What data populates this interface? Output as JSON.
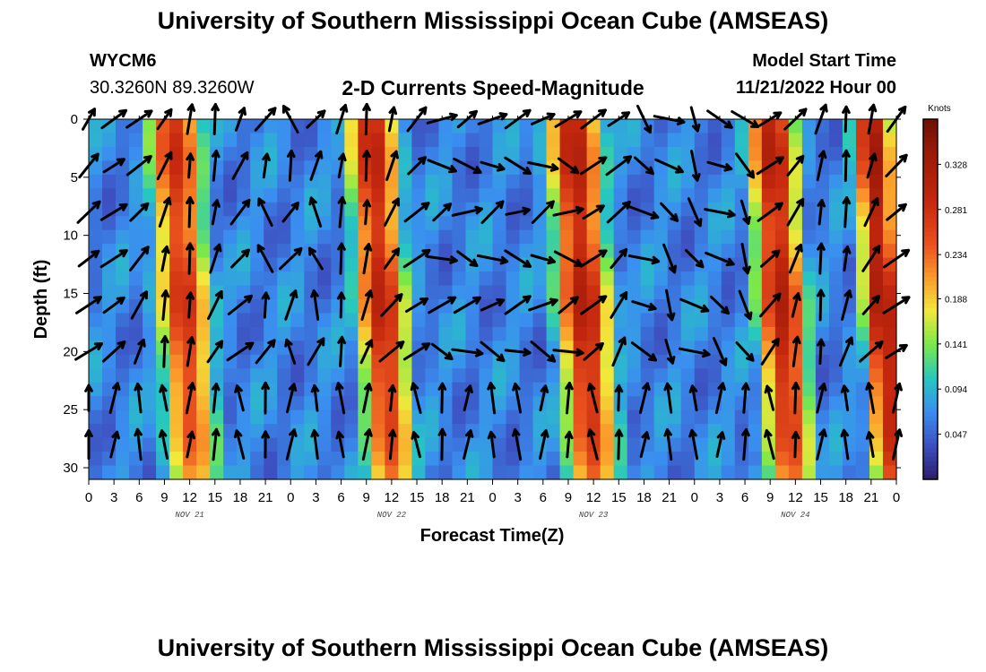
{
  "page": {
    "title": "University of Southern Mississippi Ocean Cube (AMSEAS)",
    "footer_title": "University of Southern Mississippi Ocean Cube (AMSEAS)",
    "station_id": "WYCM6",
    "station_coords": "30.3260N  89.3260W",
    "subtitle": "2-D Currents Speed-Magnitude",
    "model_start_label": "Model Start Time",
    "model_start_value": "11/21/2022 Hour 00"
  },
  "chart_data": {
    "type": "heatmap",
    "title": "2-D Currents Speed-Magnitude",
    "xlabel": "Forecast Time(Z)",
    "ylabel": "Depth (ft)",
    "xlim": [
      0,
      96
    ],
    "ylim": [
      31,
      0
    ],
    "x_tick_values": [
      0,
      3,
      6,
      9,
      12,
      15,
      18,
      21,
      24,
      27,
      30,
      33,
      36,
      39,
      42,
      45,
      48,
      51,
      54,
      57,
      60,
      63,
      66,
      69,
      72,
      75,
      78,
      81,
      84,
      87,
      90,
      93,
      96
    ],
    "x_tick_labels": [
      "0",
      "3",
      "6",
      "9",
      "12",
      "15",
      "18",
      "21",
      "0",
      "3",
      "6",
      "9",
      "12",
      "15",
      "18",
      "21",
      "0",
      "3",
      "6",
      "9",
      "12",
      "15",
      "18",
      "21",
      "0",
      "3",
      "6",
      "9",
      "12",
      "15",
      "18",
      "21",
      "0"
    ],
    "date_labels": [
      {
        "x": 12,
        "text": "NOV 21"
      },
      {
        "x": 36,
        "text": "NOV 22"
      },
      {
        "x": 60,
        "text": "NOV 23"
      },
      {
        "x": 84,
        "text": "NOV 24"
      }
    ],
    "y_tick_values": [
      0,
      5,
      10,
      15,
      20,
      25,
      30
    ],
    "y_tick_labels": [
      "0",
      "5",
      "10",
      "15",
      "20",
      "25",
      "30"
    ],
    "colorbar": {
      "units": "Knots",
      "min": 0.0,
      "max": 0.375,
      "tick_values": [
        0.047,
        0.094,
        0.141,
        0.188,
        0.234,
        0.281,
        0.328
      ],
      "tick_labels": [
        "0.047",
        "0.094",
        "0.141",
        "0.188",
        "0.234",
        "0.281",
        "0.328"
      ],
      "stops": [
        {
          "v": 0.0,
          "color": "#2b1e6e"
        },
        {
          "v": 0.035,
          "color": "#3d4fc0"
        },
        {
          "v": 0.07,
          "color": "#3a8ef0"
        },
        {
          "v": 0.105,
          "color": "#26c7c0"
        },
        {
          "v": 0.14,
          "color": "#7ae84a"
        },
        {
          "v": 0.175,
          "color": "#f2e83a"
        },
        {
          "v": 0.21,
          "color": "#fb9a2b"
        },
        {
          "v": 0.245,
          "color": "#e9511e"
        },
        {
          "v": 0.29,
          "color": "#c4270e"
        },
        {
          "v": 0.34,
          "color": "#9a1a08"
        },
        {
          "v": 0.375,
          "color": "#6e1005"
        }
      ]
    },
    "speed_bands": [
      {
        "center_hour": 11,
        "peak_knots": 0.27,
        "width_hours": 3.5
      },
      {
        "center_hour": 34.5,
        "peak_knots": 0.29,
        "width_hours": 3.3
      },
      {
        "center_hour": 58.5,
        "peak_knots": 0.3,
        "width_hours": 3.5
      },
      {
        "center_hour": 82,
        "peak_knots": 0.3,
        "width_hours": 3.2
      },
      {
        "center_hour": 94,
        "peak_knots": 0.32,
        "width_hours": 2.5
      }
    ],
    "background_knots": 0.065,
    "arrow_depths_ft": [
      0,
      4,
      8,
      12,
      16,
      20,
      24,
      28
    ],
    "arrow_hours": [
      0,
      3,
      6,
      9,
      12,
      15,
      18,
      21,
      24,
      27,
      30,
      33,
      36,
      39,
      42,
      45,
      48,
      51,
      54,
      57,
      60,
      63,
      66,
      69,
      72,
      75,
      78,
      81,
      84,
      87,
      90,
      93,
      96
    ]
  }
}
